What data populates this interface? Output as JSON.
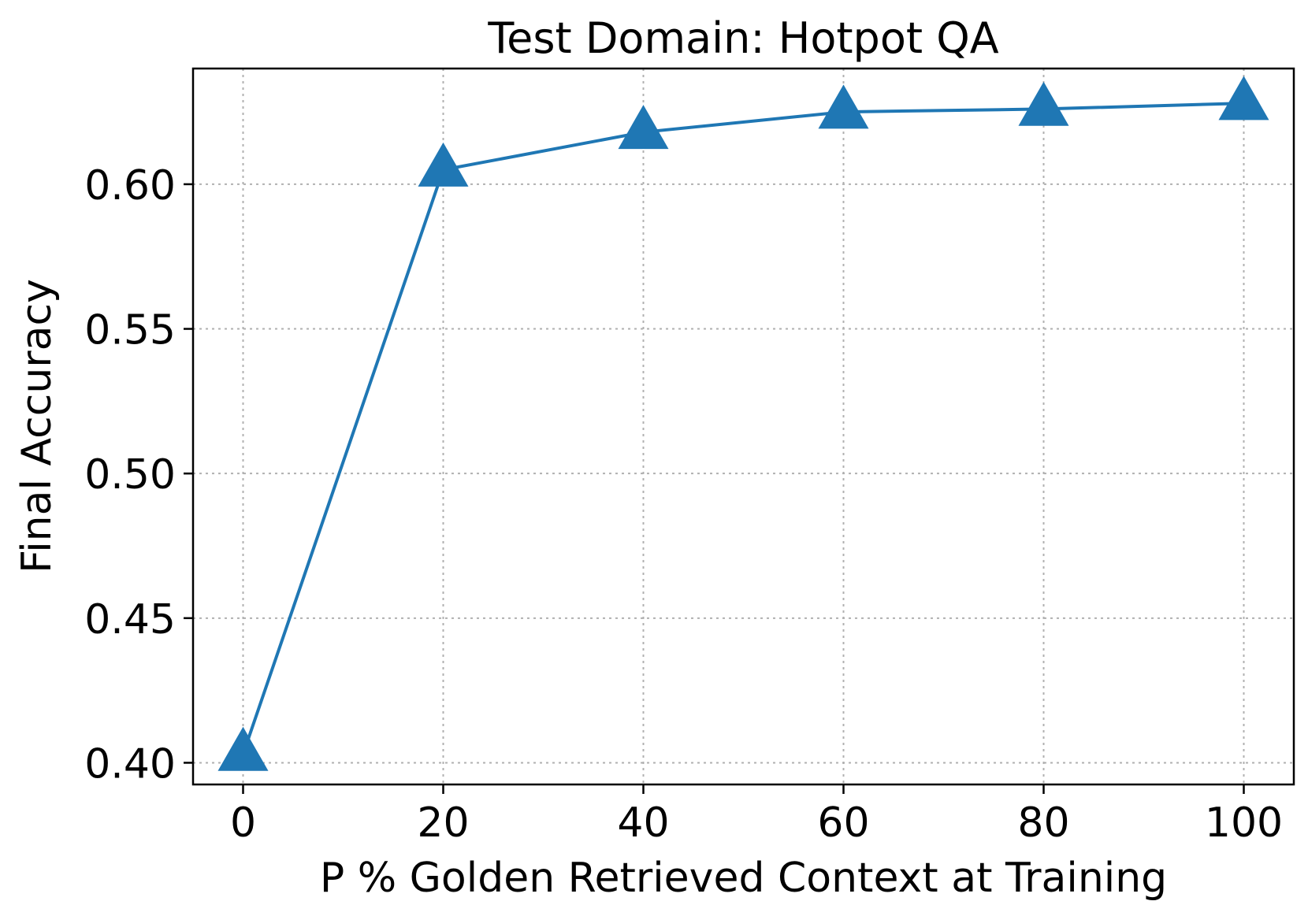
{
  "chart_data": {
    "type": "line",
    "title": "Test Domain: Hotpot QA",
    "xlabel": "P % Golden Retrieved Context at Training",
    "ylabel": "Final Accuracy",
    "x": [
      0,
      20,
      40,
      60,
      80,
      100
    ],
    "series": [
      {
        "values": [
          0.403,
          0.605,
          0.618,
          0.625,
          0.626,
          0.628
        ],
        "color": "#1f77b4",
        "marker": "triangle-up"
      }
    ],
    "xticks": [
      0,
      20,
      40,
      60,
      80,
      100
    ],
    "xtick_labels": [
      "0",
      "20",
      "40",
      "60",
      "80",
      "100"
    ],
    "yticks": [
      0.4,
      0.45,
      0.5,
      0.55,
      0.6
    ],
    "ytick_labels": [
      "0.40",
      "0.45",
      "0.50",
      "0.55",
      "0.60"
    ],
    "xlim": [
      -5,
      105
    ],
    "ylim": [
      0.3925,
      0.64
    ],
    "grid": true
  }
}
